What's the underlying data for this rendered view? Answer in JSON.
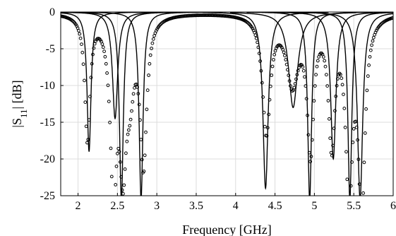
{
  "chart_data": {
    "type": "line",
    "title": "",
    "xlabel": "Frequency [GHz]",
    "ylabel": "|S11| [dB]",
    "ylabel_parts": {
      "pre": "|S",
      "sub": "11",
      "post": "| [dB]"
    },
    "xlim": [
      1.78,
      6.0
    ],
    "ylim": [
      -25,
      0
    ],
    "xticks": [
      2,
      2.5,
      3,
      3.5,
      4,
      4.5,
      5,
      5.5,
      6
    ],
    "xtick_labels": [
      "2",
      "2.5",
      "3",
      "3.5",
      "4",
      "4.5",
      "5",
      "5.5",
      "6"
    ],
    "yticks": [
      0,
      -5,
      -10,
      -15,
      -20,
      -25
    ],
    "ytick_labels": [
      "0",
      "-5",
      "-10",
      "-15",
      "-20",
      "-25"
    ],
    "grid": true,
    "legend": "none",
    "series_style": {
      "simulated": "solid black line",
      "measured": "open black circles"
    },
    "series": [
      {
        "style": "line",
        "resonances": [
          {
            "f": 2.14,
            "depth": -19.0,
            "bw": 0.03
          },
          {
            "f": 2.47,
            "depth": -14.5,
            "bw": 0.04
          },
          {
            "f": 2.55,
            "depth": -25.5,
            "bw": 0.03
          },
          {
            "f": 2.8,
            "depth": -25.5,
            "bw": 0.03
          },
          {
            "f": 4.38,
            "depth": -24.0,
            "bw": 0.04
          },
          {
            "f": 4.73,
            "depth": -13.0,
            "bw": 0.07
          },
          {
            "f": 4.94,
            "depth": -25.5,
            "bw": 0.03
          },
          {
            "f": 5.24,
            "depth": -20.0,
            "bw": 0.04
          },
          {
            "f": 5.45,
            "depth": -25.5,
            "bw": 0.03
          },
          {
            "f": 5.58,
            "depth": -25.5,
            "bw": 0.04
          }
        ]
      },
      {
        "style": "markers",
        "resonances": [
          {
            "f": 2.12,
            "depth": -17.0,
            "bw": 0.04
          },
          {
            "f": 2.45,
            "depth": -23.0,
            "bw": 0.05
          },
          {
            "f": 2.57,
            "depth": -18.0,
            "bw": 0.05
          },
          {
            "f": 2.66,
            "depth": -8.0,
            "bw": 0.06
          },
          {
            "f": 2.83,
            "depth": -20.0,
            "bw": 0.05
          },
          {
            "f": 4.39,
            "depth": -16.0,
            "bw": 0.06
          },
          {
            "f": 4.72,
            "depth": -9.0,
            "bw": 0.09
          },
          {
            "f": 4.95,
            "depth": -18.0,
            "bw": 0.05
          },
          {
            "f": 5.22,
            "depth": -17.0,
            "bw": 0.05
          },
          {
            "f": 5.44,
            "depth": -24.0,
            "bw": 0.05
          },
          {
            "f": 5.6,
            "depth": -26.0,
            "bw": 0.05
          }
        ]
      }
    ]
  }
}
